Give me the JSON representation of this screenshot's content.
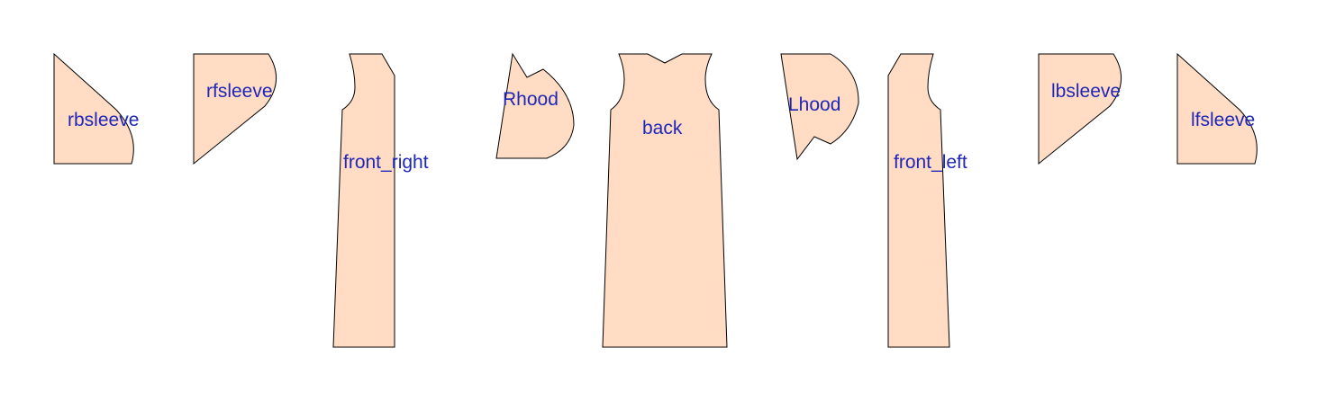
{
  "pattern": {
    "pieces": [
      {
        "id": "rbsleeve",
        "label": "rbsleeve"
      },
      {
        "id": "rfsleeve",
        "label": "rfsleeve"
      },
      {
        "id": "front_right",
        "label": "front_right"
      },
      {
        "id": "rhood",
        "label": "Rhood"
      },
      {
        "id": "back",
        "label": "back"
      },
      {
        "id": "lhood",
        "label": "Lhood"
      },
      {
        "id": "front_left",
        "label": "front_left"
      },
      {
        "id": "lbsleeve",
        "label": "lbsleeve"
      },
      {
        "id": "lfsleeve",
        "label": "lfsleeve"
      }
    ]
  },
  "colors": {
    "fill": "#ffdcc3",
    "stroke": "#000000",
    "label": "#1f27b8"
  }
}
